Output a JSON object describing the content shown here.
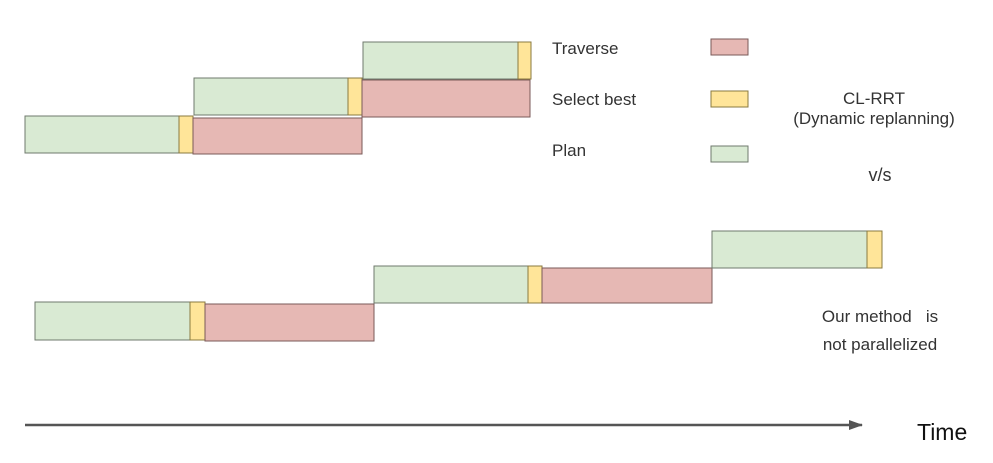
{
  "colors": {
    "plan": "#d9ead3",
    "select_best": "#ffe599",
    "traverse": "#e6b8b4",
    "axis": "#555555"
  },
  "legend": [
    {
      "key": "traverse",
      "label": "Traverse"
    },
    {
      "key": "select",
      "label": "Select best"
    },
    {
      "key": "plan",
      "label": "Plan"
    }
  ],
  "top_note": {
    "line1": "CL-RRT",
    "line2": "(Dynamic replanning)"
  },
  "vs_label": "v/s",
  "bottom_note": {
    "line1": "Our method   is",
    "line2": "not parallelized"
  },
  "axis_label": "Time"
}
